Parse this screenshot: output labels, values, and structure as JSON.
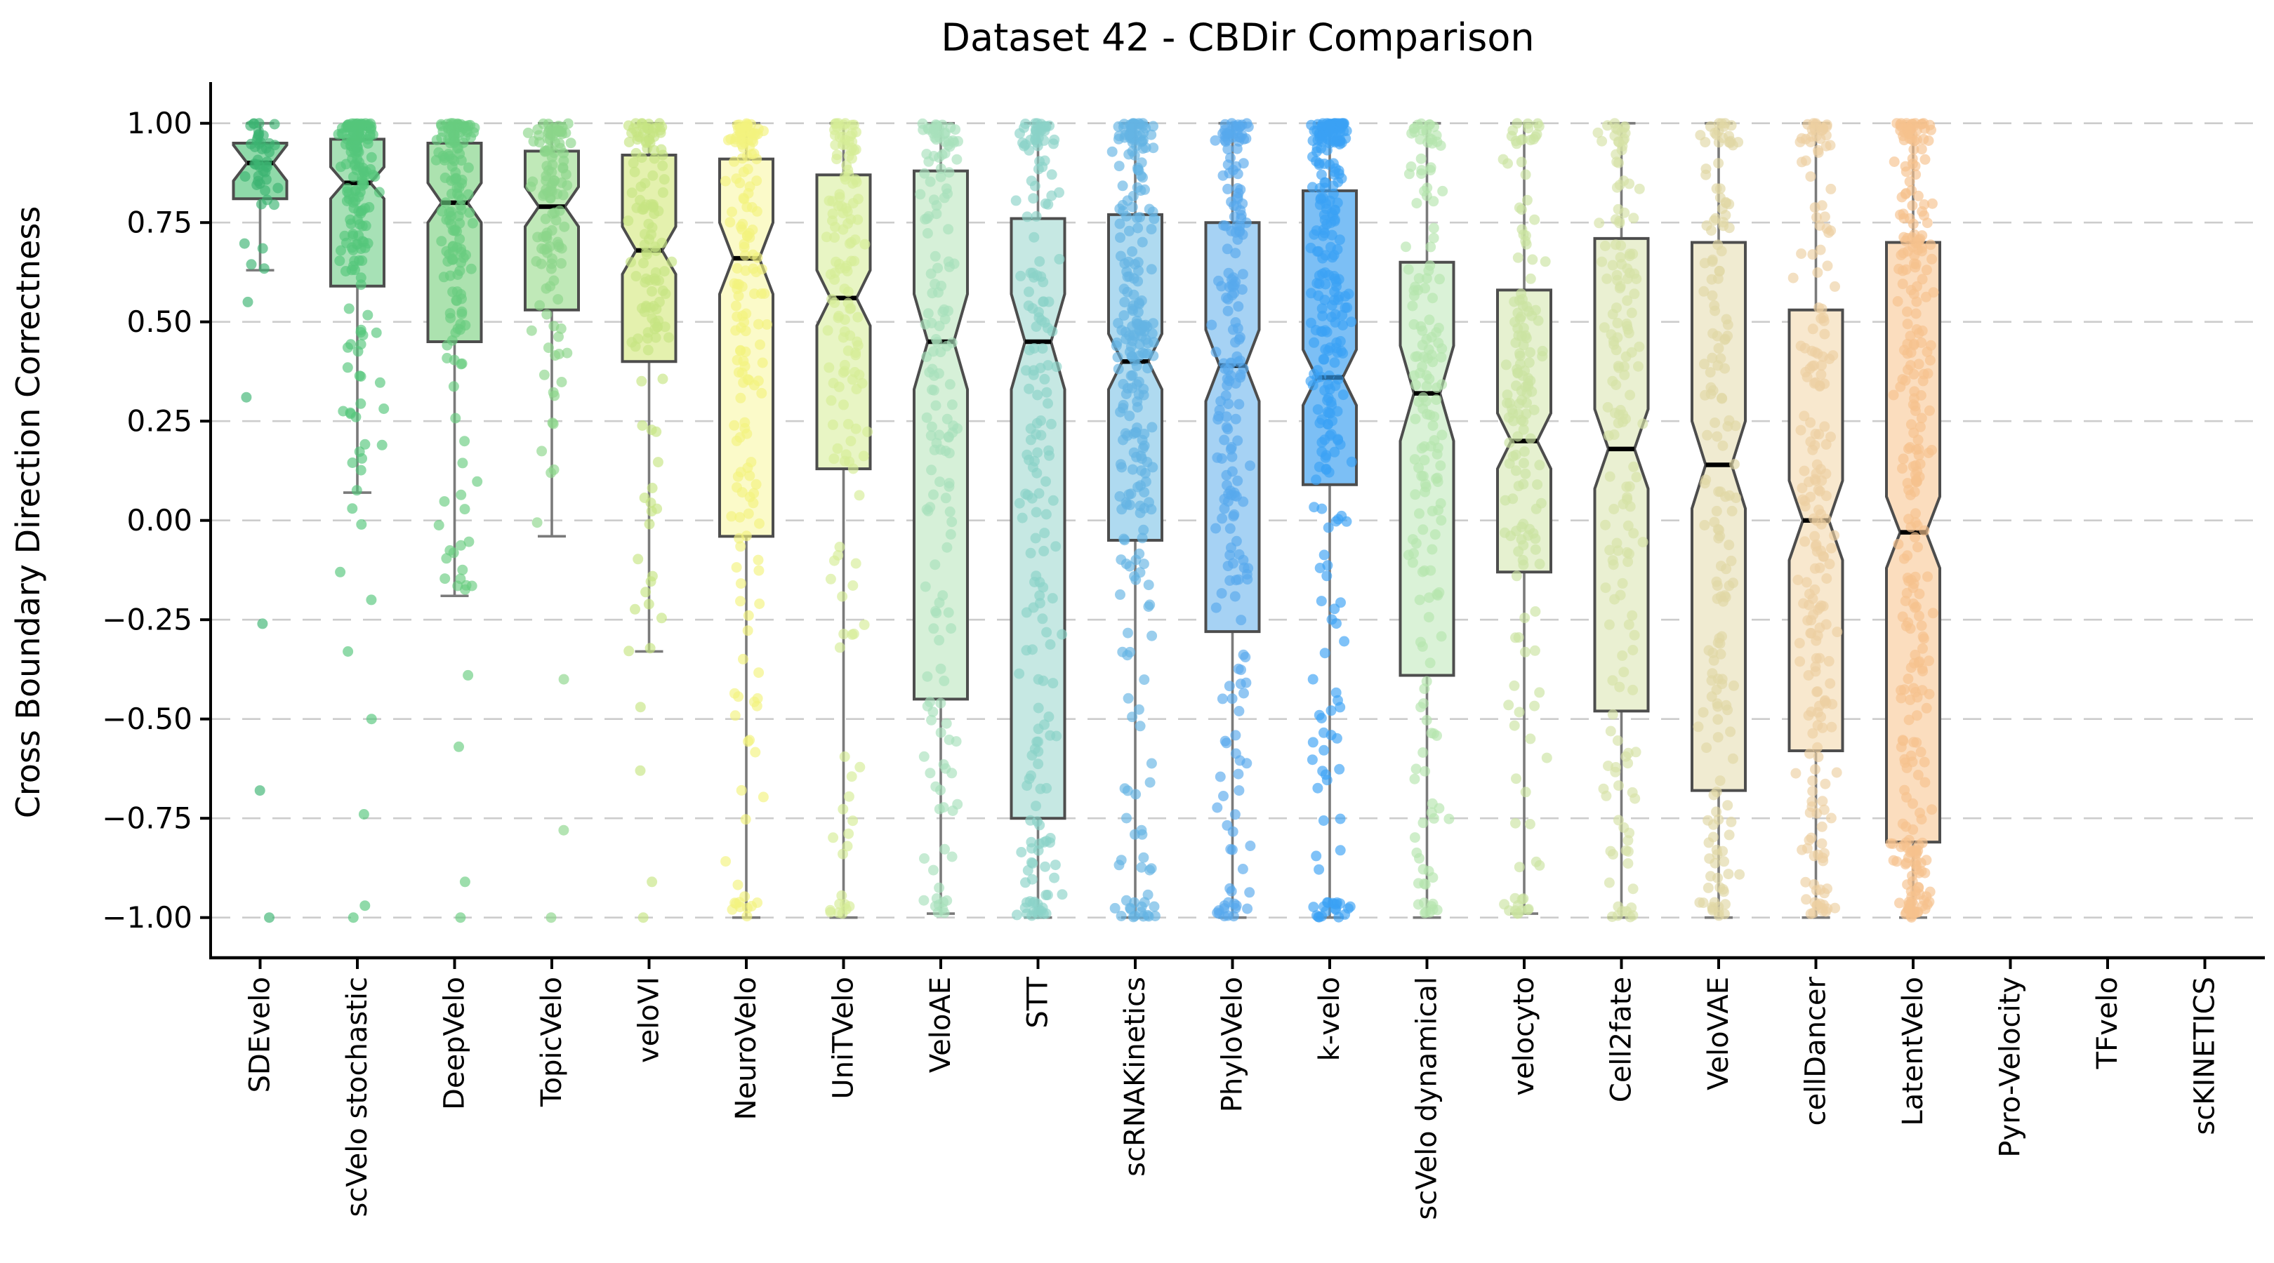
{
  "title": "Dataset 42 - CBDir Comparison",
  "chart_data": {
    "type": "box",
    "title": "Dataset 42 - CBDir Comparison",
    "ylabel": "Cross Boundary Direction Correctness",
    "xlabel": "",
    "notched": true,
    "points_overlay": "jittered strip points per method",
    "ylim": [
      -1.1,
      1.18
    ],
    "grid": {
      "axis": "y",
      "style": "dashed",
      "color": "#cccccc"
    },
    "legend": "none",
    "yticks": {
      "values": [
        1.0,
        0.75,
        0.5,
        0.25,
        0.0,
        -0.25,
        -0.5,
        -0.75,
        -1.0
      ],
      "labels": [
        "1.00",
        "0.75",
        "0.50",
        "0.25",
        "0.00",
        "−0.25",
        "−0.50",
        "−0.75",
        "−1.00"
      ]
    },
    "categories": [
      "SDEvelo",
      "scVelo stochastic",
      "DeepVelo",
      "TopicVelo",
      "veloVI",
      "NeuroVelo",
      "UniTVelo",
      "VeloAE",
      "STT",
      "scRNAKinetics",
      "PhyloVelo",
      "k-velo",
      "scVelo dynamical",
      "velocyto",
      "Cell2fate",
      "VeloVAE",
      "cellDancer",
      "LatentVelo",
      "Pyro-Velocity",
      "TFvelo",
      "scKINETICS"
    ],
    "box_edge_color": "#4d4d4d",
    "whisker_color": "#7a7a7a",
    "median_color": "#000000",
    "series": [
      {
        "name": "SDEvelo",
        "median": 0.9,
        "q1": 0.81,
        "q3": 0.95,
        "whisker_low": 0.63,
        "whisker_high": 1.0,
        "notch": 0.045,
        "n_points": 45,
        "top_frac": 0.15,
        "outliers": [
          0.55,
          0.31,
          -0.26,
          -0.68,
          -1.0
        ],
        "point_color": "#3CB371",
        "fill_color": "#8FD9A9"
      },
      {
        "name": "scVelo stochastic",
        "median": 0.85,
        "q1": 0.59,
        "q3": 0.96,
        "whisker_low": 0.07,
        "whisker_high": 1.0,
        "notch": 0.04,
        "n_points": 170,
        "top_frac": 0.2,
        "outliers": [
          0.03,
          -0.01,
          -0.13,
          -0.2,
          -0.33,
          -0.5,
          -0.74,
          -0.97,
          -1.0
        ],
        "point_color": "#54C67B",
        "fill_color": "#A7E1B6"
      },
      {
        "name": "DeepVelo",
        "median": 0.8,
        "q1": 0.45,
        "q3": 0.95,
        "whisker_low": -0.19,
        "whisker_high": 1.0,
        "notch": 0.05,
        "n_points": 160,
        "top_frac": 0.18,
        "outliers": [
          -0.39,
          -0.57,
          -0.91,
          -1.0
        ],
        "point_color": "#69CC80",
        "fill_color": "#ACE2AF"
      },
      {
        "name": "TopicVelo",
        "median": 0.79,
        "q1": 0.53,
        "q3": 0.93,
        "whisker_low": -0.04,
        "whisker_high": 1.0,
        "notch": 0.05,
        "n_points": 120,
        "top_frac": 0.18,
        "outliers": [
          -0.4,
          -0.78,
          -1.0
        ],
        "point_color": "#8CD68A",
        "fill_color": "#C0E9B8"
      },
      {
        "name": "veloVI",
        "median": 0.68,
        "q1": 0.4,
        "q3": 0.92,
        "whisker_low": -0.33,
        "whisker_high": 1.0,
        "notch": 0.06,
        "n_points": 130,
        "top_frac": 0.15,
        "outliers": [
          -0.47,
          -0.63,
          -0.91,
          -1.0
        ],
        "point_color": "#C6E583",
        "fill_color": "#E4F1AE"
      },
      {
        "name": "NeuroVelo",
        "median": 0.66,
        "q1": -0.04,
        "q3": 0.91,
        "whisker_low": -1.0,
        "whisker_high": 1.0,
        "notch": 0.09,
        "n_points": 170,
        "top_frac": 0.13,
        "outliers": [],
        "point_color": "#F2F27E",
        "fill_color": "#FBFAC9"
      },
      {
        "name": "UniTVelo",
        "median": 0.56,
        "q1": 0.13,
        "q3": 0.87,
        "whisker_low": -1.0,
        "whisker_high": 1.0,
        "notch": 0.07,
        "n_points": 150,
        "top_frac": 0.1,
        "outliers": [],
        "point_color": "#D5ED97",
        "fill_color": "#E8F5C4"
      },
      {
        "name": "VeloAE",
        "median": 0.45,
        "q1": -0.45,
        "q3": 0.88,
        "whisker_low": -0.99,
        "whisker_high": 1.0,
        "notch": 0.12,
        "n_points": 160,
        "top_frac": 0.1,
        "outliers": [],
        "point_color": "#A8E0BB",
        "fill_color": "#D6F0D8"
      },
      {
        "name": "STT",
        "median": 0.45,
        "q1": -0.75,
        "q3": 0.76,
        "whisker_low": -1.0,
        "whisker_high": 1.0,
        "notch": 0.12,
        "n_points": 190,
        "top_frac": 0.12,
        "outliers": [],
        "point_color": "#8BD2C8",
        "fill_color": "#C6E8E3"
      },
      {
        "name": "scRNAKinetics",
        "median": 0.4,
        "q1": -0.05,
        "q3": 0.77,
        "whisker_low": -1.0,
        "whisker_high": 1.0,
        "notch": 0.07,
        "n_points": 260,
        "top_frac": 0.14,
        "outliers": [],
        "point_color": "#64B4E4",
        "fill_color": "#AFDAF0"
      },
      {
        "name": "PhyloVelo",
        "median": 0.39,
        "q1": -0.28,
        "q3": 0.75,
        "whisker_low": -1.0,
        "whisker_high": 1.0,
        "notch": 0.09,
        "n_points": 210,
        "top_frac": 0.14,
        "outliers": [],
        "point_color": "#57A9EC",
        "fill_color": "#A6D2F4"
      },
      {
        "name": "k-velo",
        "median": 0.36,
        "q1": 0.09,
        "q3": 0.83,
        "whisker_low": -1.0,
        "whisker_high": 1.0,
        "notch": 0.07,
        "n_points": 290,
        "top_frac": 0.22,
        "outliers": [],
        "point_color": "#3BA1F5",
        "fill_color": "#7CBFF5"
      },
      {
        "name": "scVelo dynamical",
        "median": 0.32,
        "q1": -0.39,
        "q3": 0.65,
        "whisker_low": -1.0,
        "whisker_high": 1.0,
        "notch": 0.12,
        "n_points": 170,
        "top_frac": 0.1,
        "outliers": [],
        "point_color": "#B5E5AE",
        "fill_color": "#DAF2D7"
      },
      {
        "name": "velocyto",
        "median": 0.2,
        "q1": -0.13,
        "q3": 0.58,
        "whisker_low": -0.99,
        "whisker_high": 1.0,
        "notch": 0.07,
        "n_points": 160,
        "top_frac": 0.08,
        "outliers": [],
        "point_color": "#CBE4A2",
        "fill_color": "#E6F1D0"
      },
      {
        "name": "Cell2fate",
        "median": 0.18,
        "q1": -0.48,
        "q3": 0.71,
        "whisker_low": -1.0,
        "whisker_high": 1.0,
        "notch": 0.1,
        "n_points": 160,
        "top_frac": 0.08,
        "outliers": [],
        "point_color": "#D5E2A6",
        "fill_color": "#EAF0D2"
      },
      {
        "name": "VeloVAE",
        "median": 0.14,
        "q1": -0.68,
        "q3": 0.7,
        "whisker_low": -1.0,
        "whisker_high": 1.0,
        "notch": 0.11,
        "n_points": 170,
        "top_frac": 0.1,
        "outliers": [],
        "point_color": "#E0D7A4",
        "fill_color": "#F0EBD1"
      },
      {
        "name": "cellDancer",
        "median": 0.0,
        "q1": -0.58,
        "q3": 0.53,
        "whisker_low": -1.0,
        "whisker_high": 1.0,
        "notch": 0.1,
        "n_points": 210,
        "top_frac": 0.1,
        "outliers": [],
        "point_color": "#EDD0A2",
        "fill_color": "#F8E8CE"
      },
      {
        "name": "LatentVelo",
        "median": -0.03,
        "q1": -0.81,
        "q3": 0.7,
        "whisker_low": -1.0,
        "whisker_high": 1.0,
        "notch": 0.09,
        "n_points": 310,
        "top_frac": 0.12,
        "outliers": [],
        "point_color": "#F6C28D",
        "fill_color": "#FBDDBE"
      },
      {
        "name": "Pyro-Velocity",
        "median": null,
        "q1": null,
        "q3": null,
        "whisker_low": null,
        "whisker_high": null,
        "notch": null,
        "n_points": 0,
        "top_frac": 0,
        "outliers": [],
        "point_color": null,
        "fill_color": null
      },
      {
        "name": "TFvelo",
        "median": null,
        "q1": null,
        "q3": null,
        "whisker_low": null,
        "whisker_high": null,
        "notch": null,
        "n_points": 0,
        "top_frac": 0,
        "outliers": [],
        "point_color": null,
        "fill_color": null
      },
      {
        "name": "scKINETICS",
        "median": null,
        "q1": null,
        "q3": null,
        "whisker_low": null,
        "whisker_high": null,
        "notch": null,
        "n_points": 0,
        "top_frac": 0,
        "outliers": [],
        "point_color": null,
        "fill_color": null
      }
    ]
  }
}
